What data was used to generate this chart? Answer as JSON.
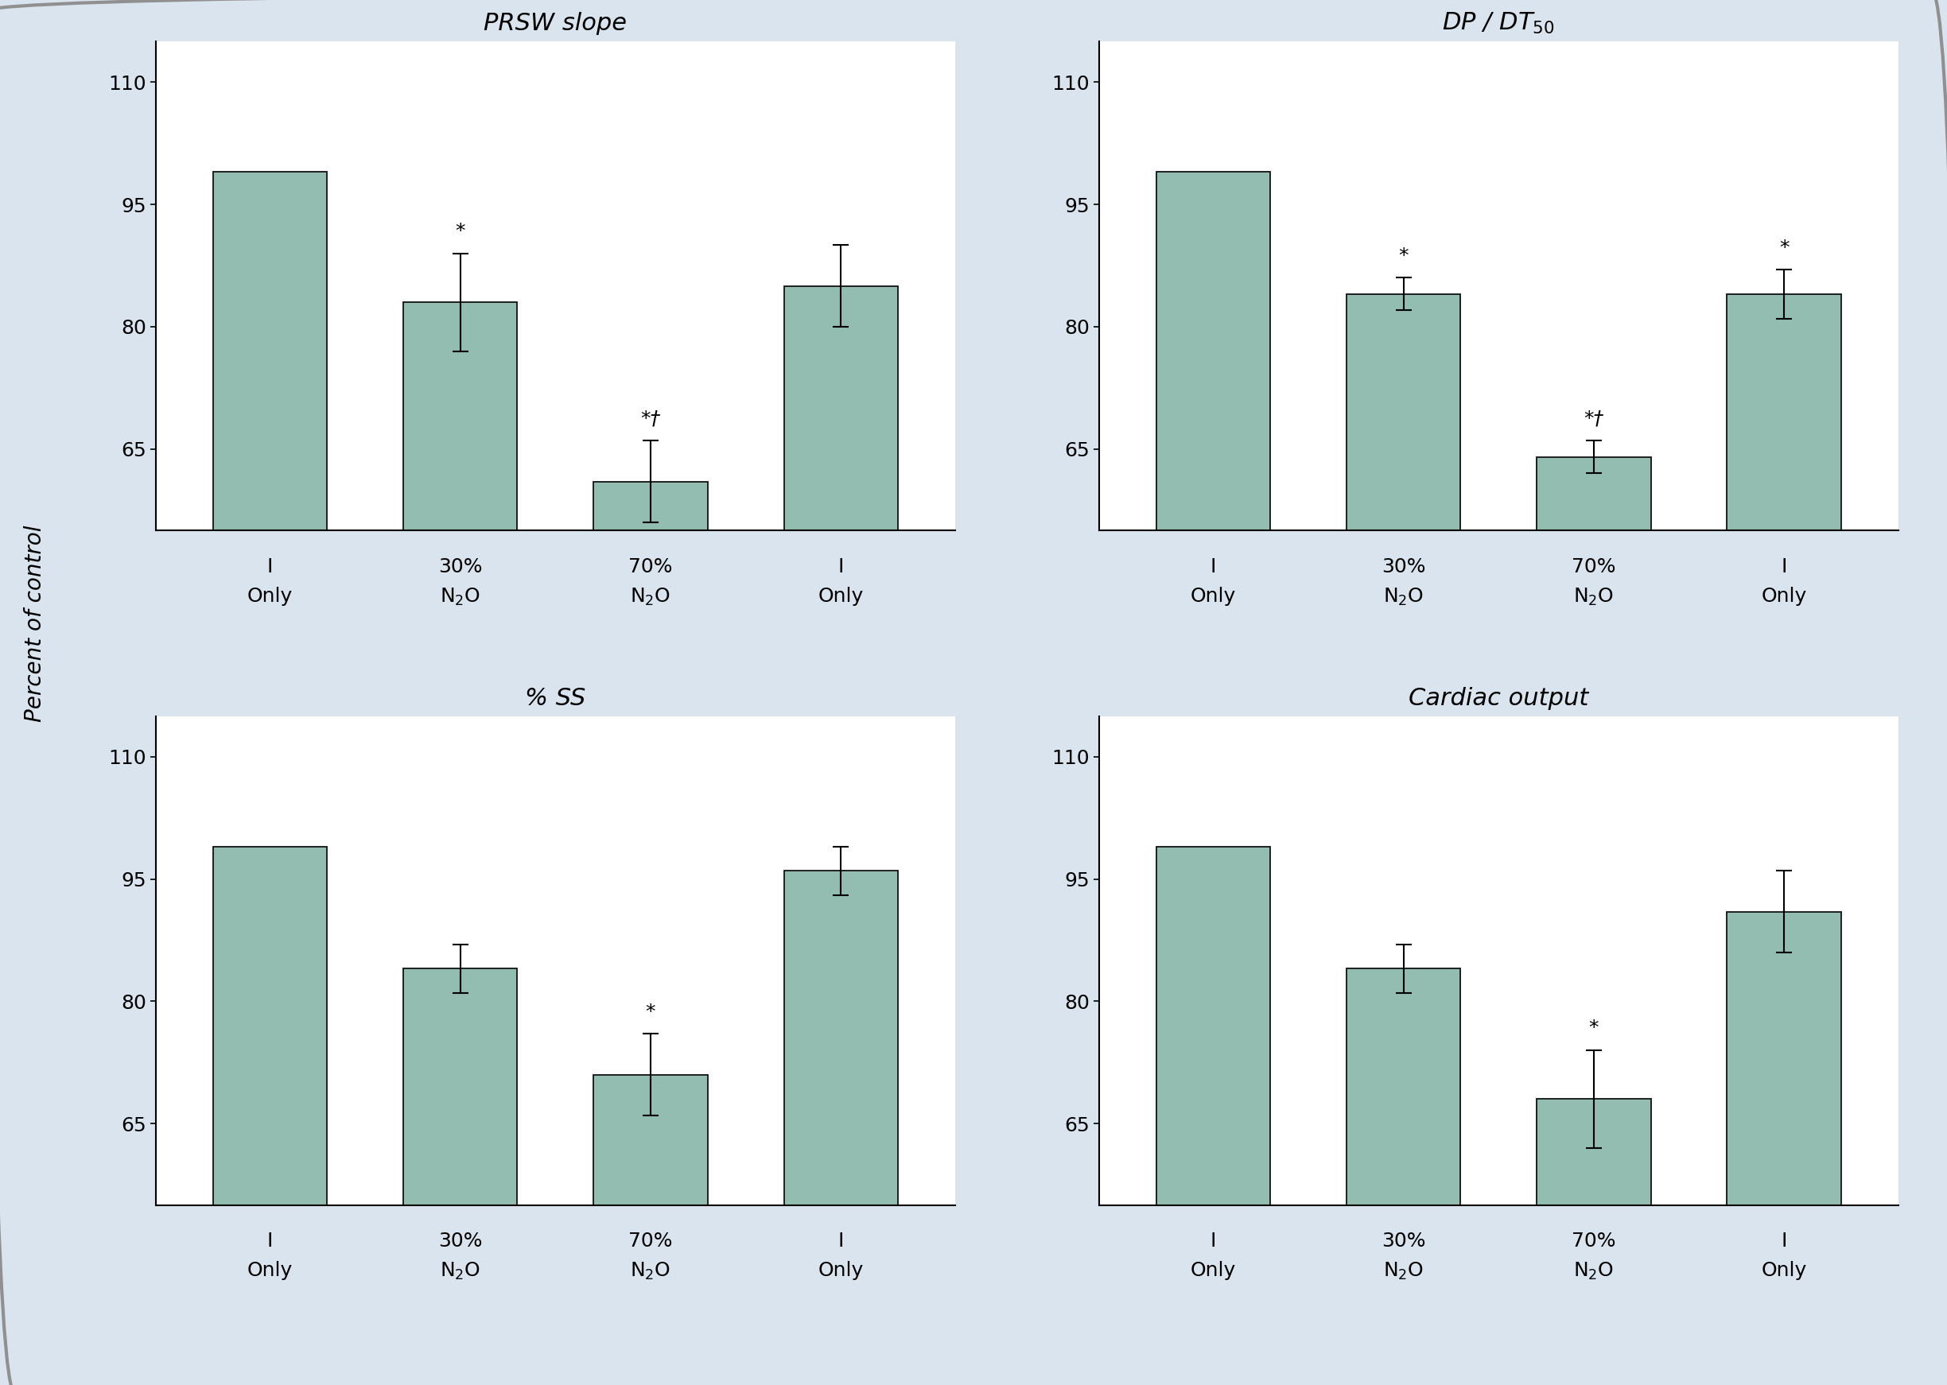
{
  "subplots": [
    {
      "title": "PRSW slope",
      "title_sub": null,
      "values": [
        99,
        83,
        61,
        85
      ],
      "errors": [
        0,
        6,
        5,
        5
      ],
      "annotations": [
        "",
        "*",
        "*†",
        ""
      ],
      "ylim": [
        55,
        115
      ],
      "yticks": [
        65,
        80,
        95,
        110
      ]
    },
    {
      "title": "DP / DT",
      "title_sub": "50",
      "values": [
        99,
        84,
        64,
        84
      ],
      "errors": [
        0,
        2,
        2,
        3
      ],
      "annotations": [
        "",
        "*",
        "*†",
        "*"
      ],
      "ylim": [
        55,
        115
      ],
      "yticks": [
        65,
        80,
        95,
        110
      ]
    },
    {
      "title": "% SS",
      "title_sub": null,
      "values": [
        99,
        84,
        71,
        96
      ],
      "errors": [
        0,
        3,
        5,
        3
      ],
      "annotations": [
        "",
        "",
        "*",
        ""
      ],
      "ylim": [
        55,
        115
      ],
      "yticks": [
        65,
        80,
        95,
        110
      ]
    },
    {
      "title": "Cardiac output",
      "title_sub": null,
      "values": [
        99,
        84,
        68,
        91
      ],
      "errors": [
        0,
        3,
        6,
        5
      ],
      "annotations": [
        "",
        "",
        "*",
        ""
      ],
      "ylim": [
        55,
        115
      ],
      "yticks": [
        65,
        80,
        95,
        110
      ]
    }
  ],
  "xticklabels_line1": [
    "I",
    "30%",
    "70%",
    "I"
  ],
  "xticklabels_line2": [
    "Only",
    "N₂O",
    "N₂O",
    "Only"
  ],
  "bar_color": "#92BDB0",
  "bar_edgecolor": "#111111",
  "figure_bg": "#DAE4EF",
  "plot_bg": "#ffffff",
  "ylabel": "Percent of control",
  "bar_width": 0.6
}
